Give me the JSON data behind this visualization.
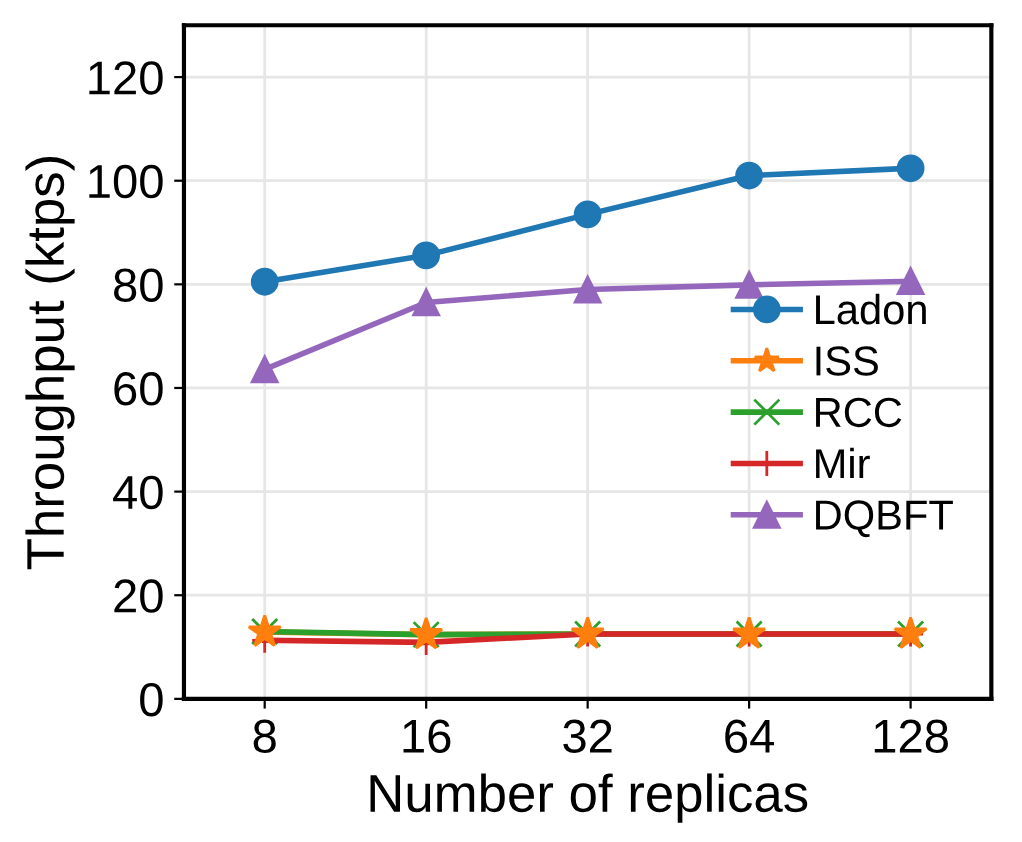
{
  "chart_data": {
    "type": "line",
    "xlabel": "Number of replicas",
    "ylabel": "Throughput (ktps)",
    "categories": [
      "8",
      "16",
      "32",
      "64",
      "128"
    ],
    "series": [
      {
        "name": "Ladon",
        "color": "#1f77b4",
        "marker": "circle",
        "values": [
          80.5,
          85.6,
          93.5,
          101,
          102.4
        ]
      },
      {
        "name": "ISS",
        "color": "#ff7f0e",
        "marker": "star",
        "values": [
          12.9,
          12.4,
          12.5,
          12.5,
          12.5
        ]
      },
      {
        "name": "RCC",
        "color": "#2ca02c",
        "marker": "x",
        "values": [
          13,
          12.4,
          12.5,
          12.5,
          12.5
        ]
      },
      {
        "name": "Mir",
        "color": "#d62728",
        "marker": "cross",
        "values": [
          11.3,
          10.9,
          12.5,
          12.5,
          12.5
        ]
      },
      {
        "name": "DQBFT",
        "color": "#9467bd",
        "marker": "triangle",
        "values": [
          63.6,
          76.5,
          79,
          79.9,
          80.6
        ]
      }
    ],
    "ylim": [
      0,
      130
    ],
    "yticks": [
      0,
      20,
      40,
      60,
      80,
      100,
      120
    ],
    "grid": true,
    "legend": "right"
  }
}
